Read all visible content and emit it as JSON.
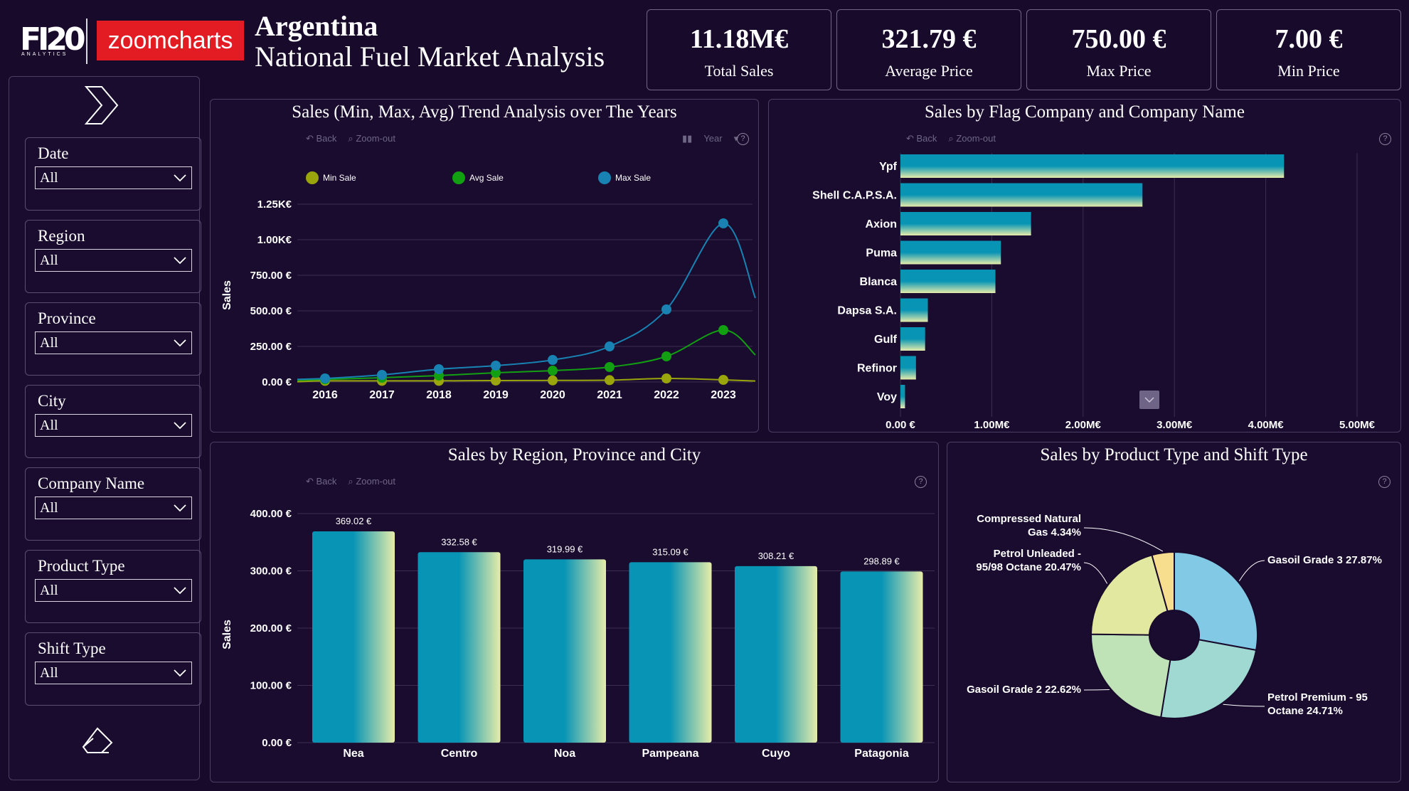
{
  "header": {
    "logo_brand": "FI20",
    "logo_sub": "ANALYTICS",
    "partner_logo": "zoomcharts",
    "title_line1": "Argentina",
    "title_line2": "National Fuel Market Analysis"
  },
  "kpis": [
    {
      "value": "11.18M€",
      "label": "Total Sales"
    },
    {
      "value": "321.79 €",
      "label": "Average Price"
    },
    {
      "value": "750.00 €",
      "label": "Max Price"
    },
    {
      "value": "7.00 €",
      "label": "Min Price"
    }
  ],
  "sidebar": {
    "expand_icon": "chevron-right-icon",
    "clear_icon": "eraser-icon",
    "slicers": [
      {
        "label": "Date",
        "value": "All"
      },
      {
        "label": "Region",
        "value": "All"
      },
      {
        "label": "Province",
        "value": "All"
      },
      {
        "label": "City",
        "value": "All"
      },
      {
        "label": "Company Name",
        "value": "All"
      },
      {
        "label": "Product Type",
        "value": "All"
      },
      {
        "label": "Shift Type",
        "value": "All"
      }
    ]
  },
  "toolbar": {
    "back": "Back",
    "zoom_out": "Zoom-out",
    "year": "Year",
    "help": "?"
  },
  "colors": {
    "bg": "#170a2b",
    "teal": "#0895b5",
    "cream": "#e6ecaa",
    "min": "#9aa50c",
    "avg": "#12a012",
    "max": "#1883b3"
  },
  "chart_data": [
    {
      "id": "trend",
      "type": "line",
      "title": "Sales (Min, Max, Avg) Trend Analysis over The Years",
      "ylabel": "Sales",
      "x": [
        "2016",
        "2017",
        "2018",
        "2019",
        "2020",
        "2021",
        "2022",
        "2023"
      ],
      "yticks": [
        "0.00 €",
        "250.00 €",
        "500.00 €",
        "750.00 €",
        "1.00K€",
        "1.25K€"
      ],
      "ylim": [
        0,
        1250
      ],
      "series": [
        {
          "name": "Min Sale",
          "color": "#9aa50c",
          "values": [
            8,
            8,
            8,
            10,
            11,
            13,
            25,
            15
          ],
          "tail": 7
        },
        {
          "name": "Avg Sale",
          "color": "#12a012",
          "values": [
            18,
            30,
            45,
            65,
            80,
            105,
            180,
            365
          ],
          "tail": 190
        },
        {
          "name": "Max Sale",
          "color": "#1883b3",
          "values": [
            25,
            50,
            90,
            115,
            155,
            250,
            510,
            1115
          ],
          "tail": 590
        }
      ]
    },
    {
      "id": "flag",
      "type": "bar",
      "orientation": "horizontal",
      "title": "Sales by Flag Company and Company Name",
      "categories": [
        "Ypf",
        "Shell C.A.P.S.A.",
        "Axion",
        "Puma",
        "Blanca",
        "Dapsa S.A.",
        "Gulf",
        "Refinor",
        "Voy"
      ],
      "values": [
        4.2,
        2.65,
        1.43,
        1.1,
        1.04,
        0.3,
        0.27,
        0.17,
        0.05
      ],
      "xticks": [
        "0.00 €",
        "1.00M€",
        "2.00M€",
        "3.00M€",
        "4.00M€",
        "5.00M€"
      ],
      "xlim": [
        0,
        5
      ]
    },
    {
      "id": "region",
      "type": "bar",
      "title": "Sales by Region, Province and City",
      "ylabel": "Sales",
      "categories": [
        "Nea",
        "Centro",
        "Noa",
        "Pampeana",
        "Cuyo",
        "Patagonia"
      ],
      "values": [
        369.02,
        332.58,
        319.99,
        315.09,
        308.21,
        298.89
      ],
      "labels": [
        "369.02 €",
        "332.58 €",
        "319.99 €",
        "315.09 €",
        "308.21 €",
        "298.89 €"
      ],
      "yticks": [
        "0.00 €",
        "100.00 €",
        "200.00 €",
        "300.00 €",
        "400.00 €"
      ],
      "ylim": [
        0,
        400
      ]
    },
    {
      "id": "product",
      "type": "pie",
      "title": "Sales by Product Type and Shift Type",
      "slices": [
        {
          "label": "Gasoil Grade 3 27.87%",
          "value": 27.87,
          "color": "#82c9e6"
        },
        {
          "label": "Petrol Premium - 95 Octane 24.71%",
          "value": 24.71,
          "color": "#9fd9d2"
        },
        {
          "label": "Gasoil Grade 2 22.62%",
          "value": 22.62,
          "color": "#bfe3b6"
        },
        {
          "label": "Petrol Unleaded - 95/98 Octane 20.47%",
          "value": 20.47,
          "color": "#e3e8a0"
        },
        {
          "label": "Compressed Natural Gas 4.34%",
          "value": 4.34,
          "color": "#f7de8f"
        }
      ]
    }
  ]
}
